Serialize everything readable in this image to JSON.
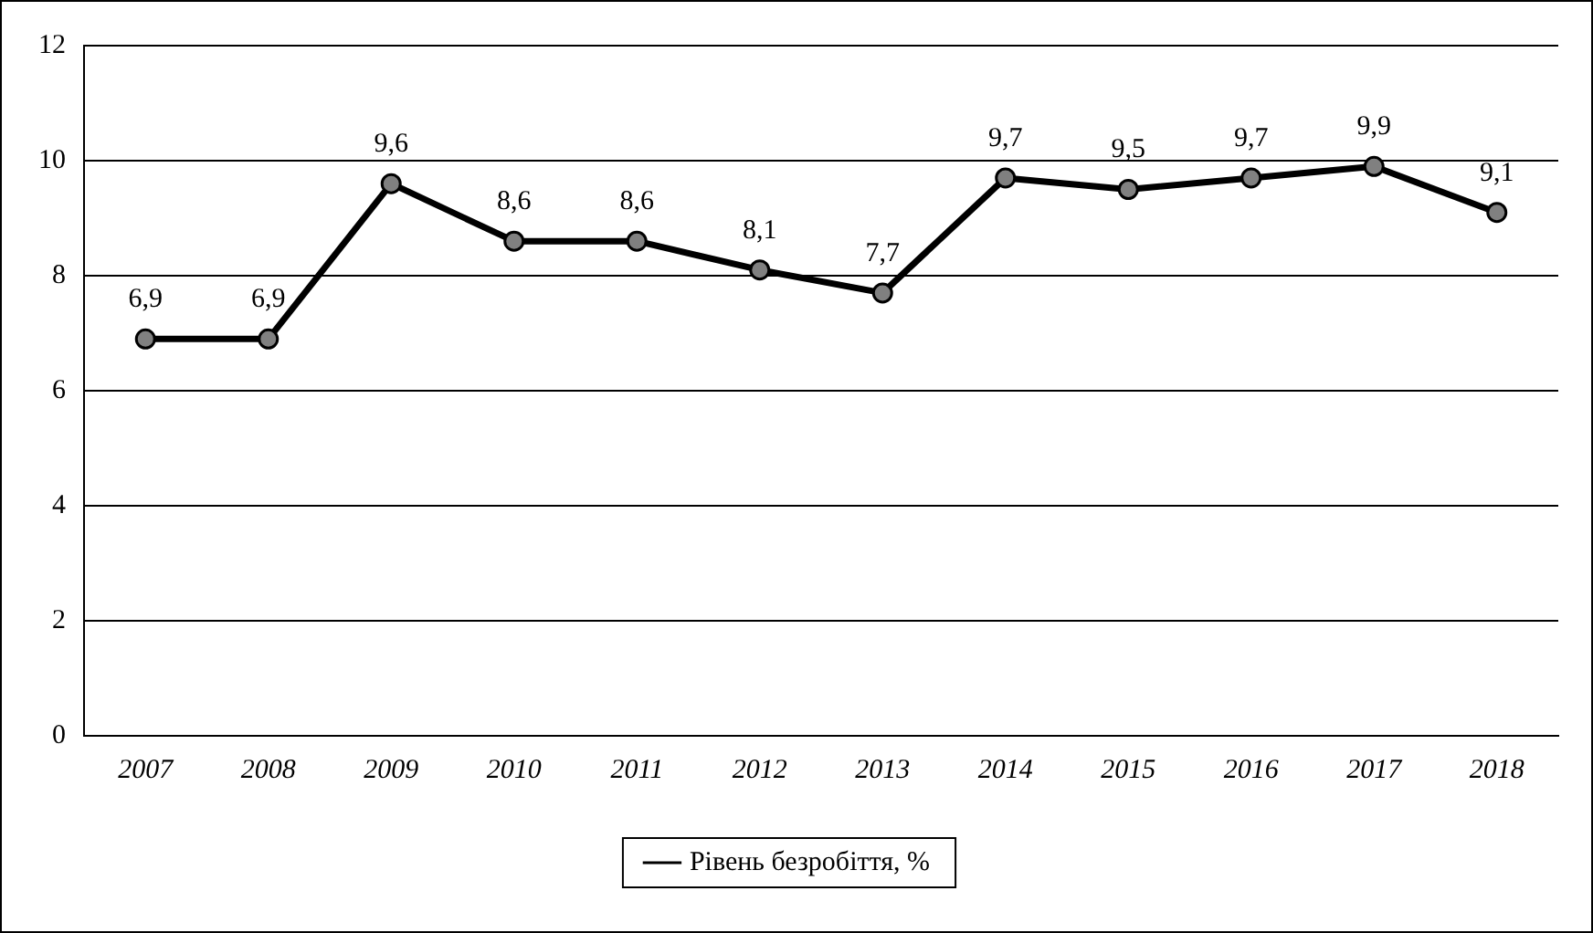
{
  "chart_data": {
    "type": "line",
    "categories": [
      "2007",
      "2008",
      "2009",
      "2010",
      "2011",
      "2012",
      "2013",
      "2014",
      "2015",
      "2016",
      "2017",
      "2018"
    ],
    "series": [
      {
        "name": "Рівень безробіття, %",
        "color": "#000000",
        "values": [
          6.9,
          6.9,
          9.6,
          8.6,
          8.6,
          8.1,
          7.7,
          9.7,
          9.5,
          9.7,
          9.9,
          9.1
        ],
        "value_labels": [
          "6,9",
          "6,9",
          "9,6",
          "8,6",
          "8,6",
          "8,1",
          "7,7",
          "9,7",
          "9,5",
          "9,7",
          "9,9",
          "9,1"
        ]
      }
    ],
    "ylim": [
      0,
      12
    ],
    "yticks": [
      0,
      2,
      4,
      6,
      8,
      10,
      12
    ],
    "grid": "y",
    "legend": "bottom",
    "marker": "circle",
    "line_style": "solid"
  }
}
